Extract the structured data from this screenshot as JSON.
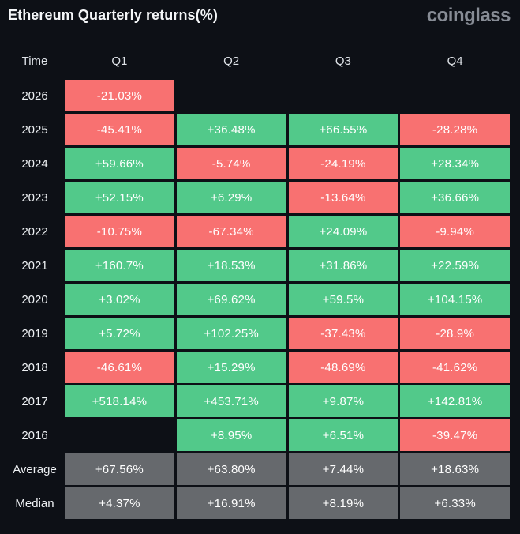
{
  "header": {
    "title": "Ethereum Quarterly returns(%)",
    "brand": "coinglass"
  },
  "colors": {
    "background": "#0d1016",
    "positive": "#52c98a",
    "negative": "#f87171",
    "summary": "#66696d",
    "text": "#ffffff",
    "brand": "#878c95"
  },
  "table": {
    "columns": [
      "Time",
      "Q1",
      "Q2",
      "Q3",
      "Q4"
    ],
    "rows": [
      {
        "label": "2026",
        "cells": [
          {
            "text": "-21.03%",
            "tone": "negative"
          },
          null,
          null,
          null
        ]
      },
      {
        "label": "2025",
        "cells": [
          {
            "text": "-45.41%",
            "tone": "negative"
          },
          {
            "text": "+36.48%",
            "tone": "positive"
          },
          {
            "text": "+66.55%",
            "tone": "positive"
          },
          {
            "text": "-28.28%",
            "tone": "negative"
          }
        ]
      },
      {
        "label": "2024",
        "cells": [
          {
            "text": "+59.66%",
            "tone": "positive"
          },
          {
            "text": "-5.74%",
            "tone": "negative"
          },
          {
            "text": "-24.19%",
            "tone": "negative"
          },
          {
            "text": "+28.34%",
            "tone": "positive"
          }
        ]
      },
      {
        "label": "2023",
        "cells": [
          {
            "text": "+52.15%",
            "tone": "positive"
          },
          {
            "text": "+6.29%",
            "tone": "positive"
          },
          {
            "text": "-13.64%",
            "tone": "negative"
          },
          {
            "text": "+36.66%",
            "tone": "positive"
          }
        ]
      },
      {
        "label": "2022",
        "cells": [
          {
            "text": "-10.75%",
            "tone": "negative"
          },
          {
            "text": "-67.34%",
            "tone": "negative"
          },
          {
            "text": "+24.09%",
            "tone": "positive"
          },
          {
            "text": "-9.94%",
            "tone": "negative"
          }
        ]
      },
      {
        "label": "2021",
        "cells": [
          {
            "text": "+160.7%",
            "tone": "positive"
          },
          {
            "text": "+18.53%",
            "tone": "positive"
          },
          {
            "text": "+31.86%",
            "tone": "positive"
          },
          {
            "text": "+22.59%",
            "tone": "positive"
          }
        ]
      },
      {
        "label": "2020",
        "cells": [
          {
            "text": "+3.02%",
            "tone": "positive"
          },
          {
            "text": "+69.62%",
            "tone": "positive"
          },
          {
            "text": "+59.5%",
            "tone": "positive"
          },
          {
            "text": "+104.15%",
            "tone": "positive"
          }
        ]
      },
      {
        "label": "2019",
        "cells": [
          {
            "text": "+5.72%",
            "tone": "positive"
          },
          {
            "text": "+102.25%",
            "tone": "positive"
          },
          {
            "text": "-37.43%",
            "tone": "negative"
          },
          {
            "text": "-28.9%",
            "tone": "negative"
          }
        ]
      },
      {
        "label": "2018",
        "cells": [
          {
            "text": "-46.61%",
            "tone": "negative"
          },
          {
            "text": "+15.29%",
            "tone": "positive"
          },
          {
            "text": "-48.69%",
            "tone": "negative"
          },
          {
            "text": "-41.62%",
            "tone": "negative"
          }
        ]
      },
      {
        "label": "2017",
        "cells": [
          {
            "text": "+518.14%",
            "tone": "positive"
          },
          {
            "text": "+453.71%",
            "tone": "positive"
          },
          {
            "text": "+9.87%",
            "tone": "positive"
          },
          {
            "text": "+142.81%",
            "tone": "positive"
          }
        ]
      },
      {
        "label": "2016",
        "cells": [
          null,
          {
            "text": "+8.95%",
            "tone": "positive"
          },
          {
            "text": "+6.51%",
            "tone": "positive"
          },
          {
            "text": "-39.47%",
            "tone": "negative"
          }
        ]
      },
      {
        "label": "Average",
        "cells": [
          {
            "text": "+67.56%",
            "tone": "summary"
          },
          {
            "text": "+63.80%",
            "tone": "summary"
          },
          {
            "text": "+7.44%",
            "tone": "summary"
          },
          {
            "text": "+18.63%",
            "tone": "summary"
          }
        ]
      },
      {
        "label": "Median",
        "cells": [
          {
            "text": "+4.37%",
            "tone": "summary"
          },
          {
            "text": "+16.91%",
            "tone": "summary"
          },
          {
            "text": "+8.19%",
            "tone": "summary"
          },
          {
            "text": "+6.33%",
            "tone": "summary"
          }
        ]
      }
    ]
  },
  "chart_data": {
    "type": "table",
    "title": "Ethereum Quarterly returns(%)",
    "columns": [
      "Q1",
      "Q2",
      "Q3",
      "Q4"
    ],
    "row_labels": [
      "2026",
      "2025",
      "2024",
      "2023",
      "2022",
      "2021",
      "2020",
      "2019",
      "2018",
      "2017",
      "2016",
      "Average",
      "Median"
    ],
    "values": [
      [
        -21.03,
        null,
        null,
        null
      ],
      [
        -45.41,
        36.48,
        66.55,
        -28.28
      ],
      [
        59.66,
        -5.74,
        -24.19,
        28.34
      ],
      [
        52.15,
        6.29,
        -13.64,
        36.66
      ],
      [
        -10.75,
        -67.34,
        24.09,
        -9.94
      ],
      [
        160.7,
        18.53,
        31.86,
        22.59
      ],
      [
        3.02,
        69.62,
        59.5,
        104.15
      ],
      [
        5.72,
        102.25,
        -37.43,
        -28.9
      ],
      [
        -46.61,
        15.29,
        -48.69,
        -41.62
      ],
      [
        518.14,
        453.71,
        9.87,
        142.81
      ],
      [
        null,
        8.95,
        6.51,
        -39.47
      ],
      [
        67.56,
        63.8,
        7.44,
        18.63
      ],
      [
        4.37,
        16.91,
        8.19,
        6.33
      ]
    ],
    "units": "percent",
    "color_rule": "positive green, negative red, Average/Median rows gray"
  }
}
